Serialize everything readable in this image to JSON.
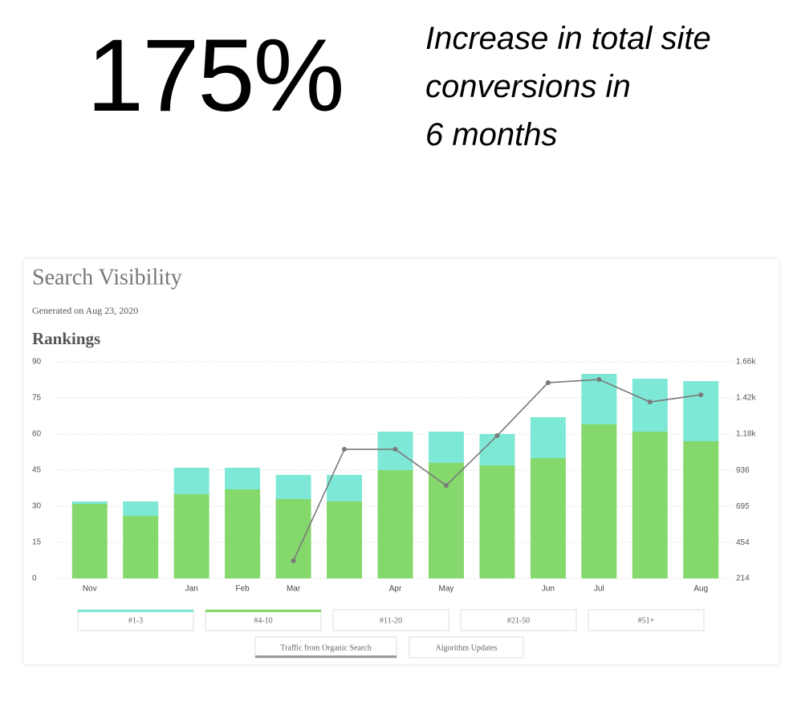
{
  "header": {
    "headline": "175%",
    "caption_lines": [
      "Increase in total site",
      "conversions in",
      "6 months"
    ]
  },
  "card": {
    "title": "Search Visibility",
    "generated": "Generated on Aug 23, 2020"
  },
  "chart_data": {
    "type": "bar",
    "stacked": true,
    "title": "Rankings",
    "categories": [
      "Nov",
      null,
      "Jan",
      "Feb",
      "Mar",
      null,
      "Apr",
      "May",
      null,
      "Jun",
      "Jul",
      null,
      "Aug"
    ],
    "series": [
      {
        "name": "#1-3",
        "color": "#7ee8d6",
        "values": [
          1,
          6,
          11,
          9,
          10,
          11,
          16,
          13,
          13,
          17,
          21,
          22,
          25
        ]
      },
      {
        "name": "#4-10",
        "color": "#85d86c",
        "values": [
          31,
          26,
          35,
          37,
          33,
          32,
          45,
          48,
          47,
          50,
          64,
          61,
          57
        ]
      },
      {
        "name": "Traffic from Organic Search",
        "type": "line",
        "axis": "y2",
        "color": "#7a7a7a",
        "values": [
          null,
          null,
          null,
          null,
          332,
          1076,
          1076,
          835,
          1167,
          1521,
          1542,
          1392,
          1440
        ]
      }
    ],
    "ylim": [
      0,
      90
    ],
    "yticks": [
      0,
      15,
      30,
      45,
      60,
      75,
      90
    ],
    "y2lim": [
      214,
      1660
    ],
    "y2ticks": [
      214,
      454,
      695,
      936,
      {
        "value": 1180,
        "label": "1.18k"
      },
      {
        "value": 1420,
        "label": "1.42k"
      },
      {
        "value": 1660,
        "label": "1.66k"
      }
    ],
    "grid": true,
    "legend_rank_buckets": [
      "#11-20",
      "#21-50",
      "#51+"
    ],
    "legend_overlays": [
      "Algorithm Updates"
    ]
  }
}
